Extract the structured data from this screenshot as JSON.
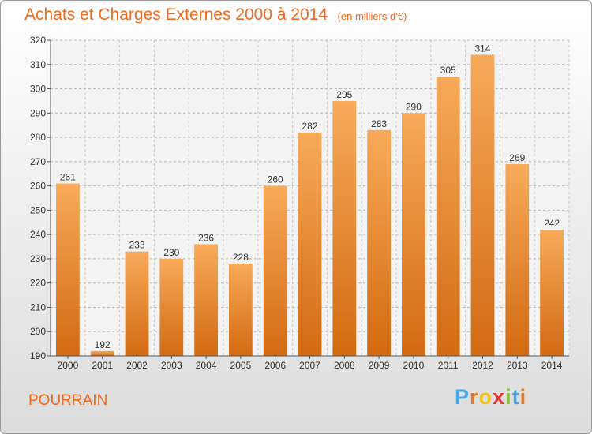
{
  "chart_data": {
    "type": "bar",
    "title": "Achats et Charges Externes 2000 à 2014",
    "unit": "(en milliers d'€)",
    "categories": [
      "2000",
      "2001",
      "2002",
      "2003",
      "2004",
      "2005",
      "2006",
      "2007",
      "2008",
      "2009",
      "2010",
      "2011",
      "2012",
      "2013",
      "2014"
    ],
    "values": [
      261,
      192,
      233,
      230,
      236,
      228,
      260,
      282,
      295,
      283,
      290,
      305,
      314,
      269,
      242
    ],
    "ylim": [
      190,
      320
    ],
    "yticks": [
      190,
      200,
      210,
      220,
      230,
      240,
      250,
      260,
      270,
      280,
      290,
      300,
      310,
      320
    ],
    "grid": true,
    "bar_color": "#ee8a2e",
    "bar_color_light": "#f7aa5a",
    "bar_color_dark": "#d36a12"
  },
  "footer": {
    "place": "POURRAIN",
    "logo_letters": [
      "P",
      "r",
      "o",
      "x",
      "i",
      "t",
      "i"
    ],
    "logo_colors": [
      "#49a7e2",
      "#e87b1e",
      "#f2c21a",
      "#d93b35",
      "#8bbf3a",
      "#49a7e2",
      "#e87b1e"
    ]
  }
}
